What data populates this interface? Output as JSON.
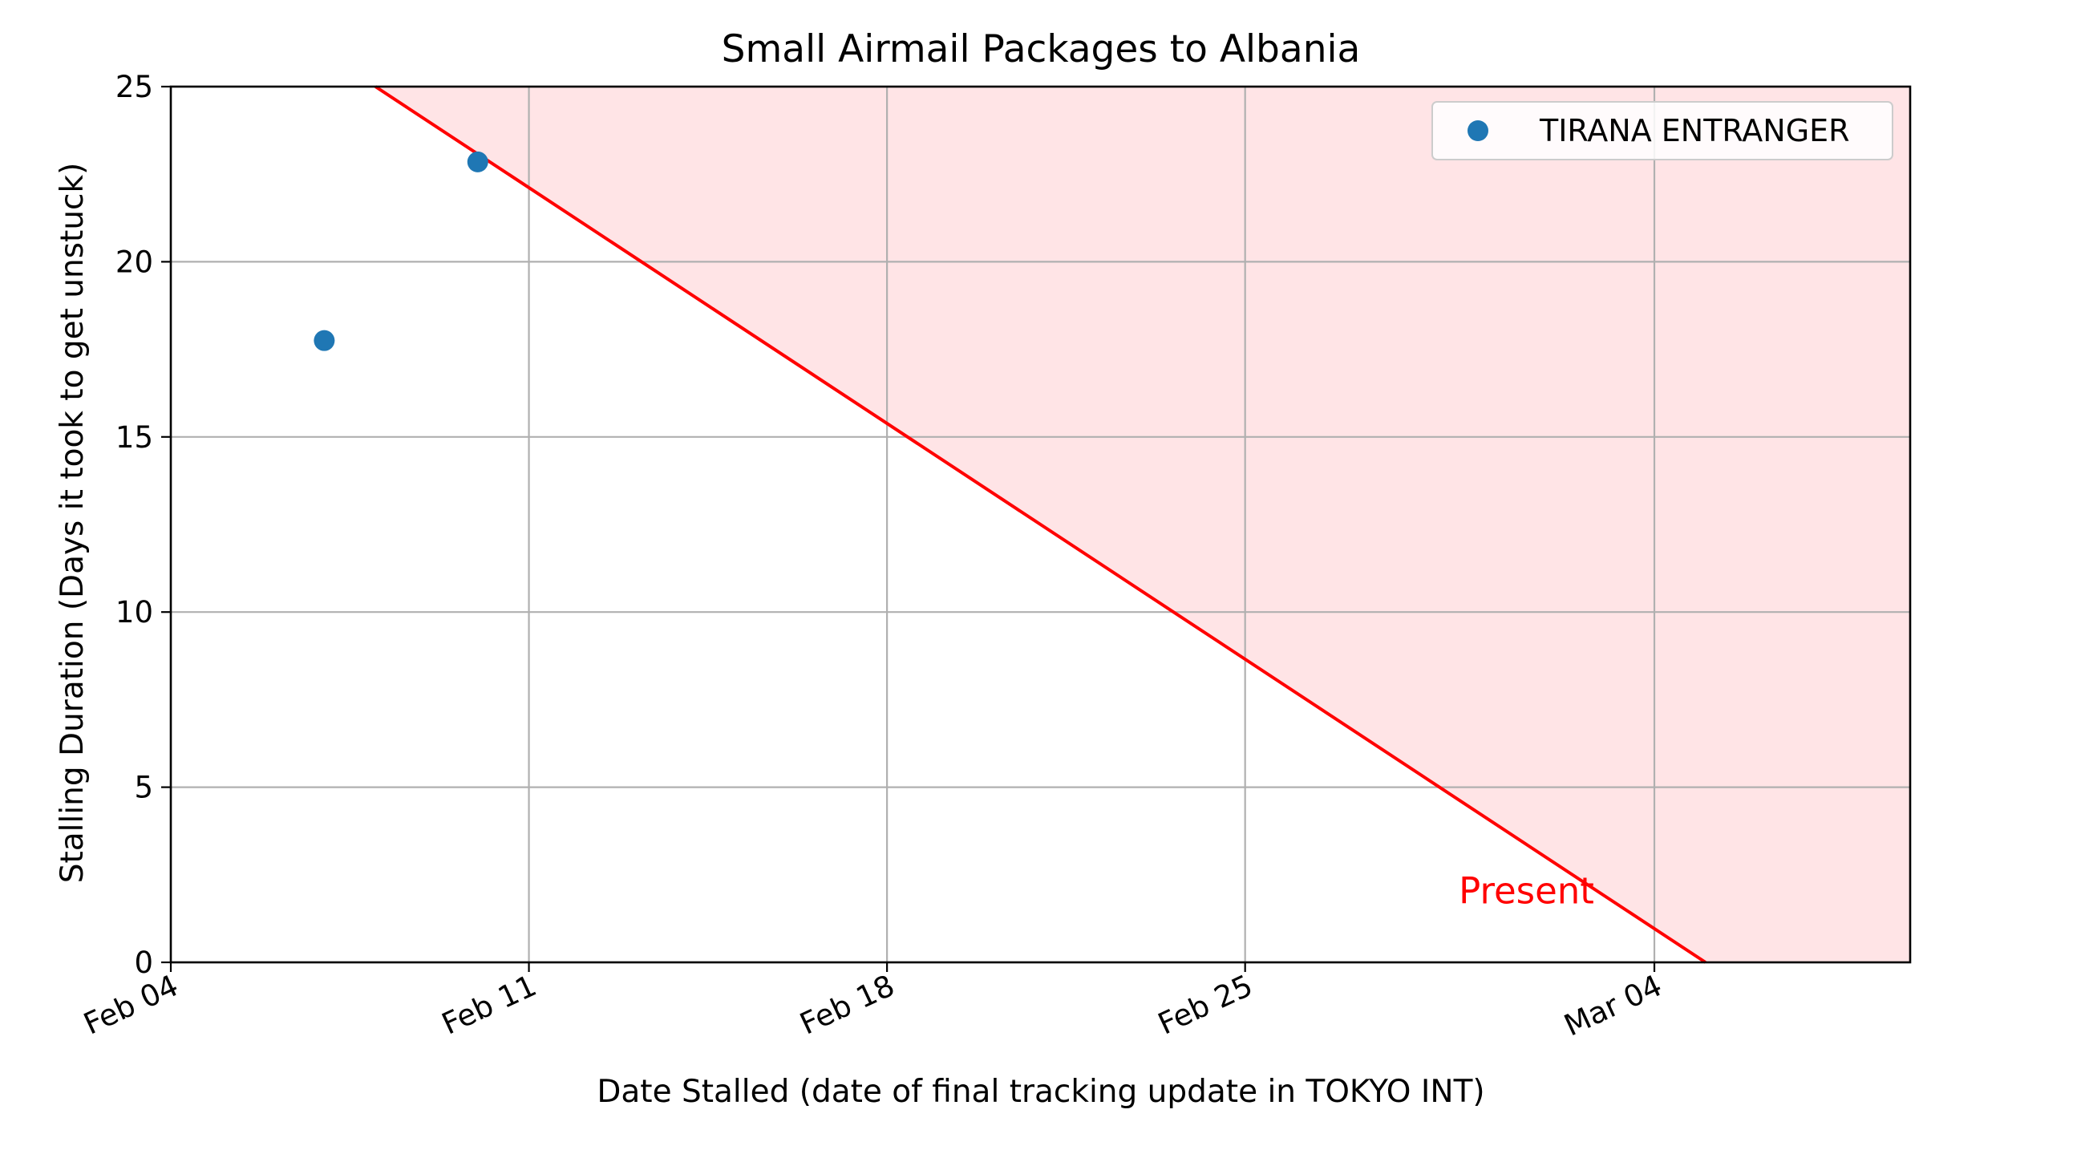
{
  "chart_data": {
    "type": "scatter",
    "title": "Small Airmail Packages to Albania",
    "xlabel": "Date Stalled (date of final tracking update in TOKYO INT)",
    "ylabel": "Stalling Duration (Days it took to get unstuck)",
    "x_axis_type": "date",
    "xlim": [
      "2024-02-04",
      "2024-03-09"
    ],
    "ylim": [
      0,
      25
    ],
    "x_ticks": [
      {
        "date": "2024-02-04",
        "label": "Feb 04"
      },
      {
        "date": "2024-02-11",
        "label": "Feb 11"
      },
      {
        "date": "2024-02-18",
        "label": "Feb 18"
      },
      {
        "date": "2024-02-25",
        "label": "Feb 25"
      },
      {
        "date": "2024-03-04",
        "label": "Mar 04"
      }
    ],
    "y_ticks": [
      0,
      5,
      10,
      15,
      20,
      25
    ],
    "grid": true,
    "legend_position": "top-right",
    "series": [
      {
        "name": "TIRANA ENTRANGER",
        "color": "#1f77b4",
        "points": [
          {
            "x": "2024-02-07",
            "y": 17.75
          },
          {
            "x": "2024-02-10",
            "y": 22.85
          }
        ]
      }
    ],
    "present_line": {
      "color": "#ff0000",
      "fill_color": "#ffe4e6",
      "points": [
        {
          "x": "2024-02-08",
          "y": 25
        },
        {
          "x": "2024-03-05",
          "y": 0
        }
      ]
    },
    "annotations": [
      {
        "text": "Present",
        "x": "2024-03-01",
        "y": 2.0,
        "color": "#ff0000"
      }
    ]
  }
}
